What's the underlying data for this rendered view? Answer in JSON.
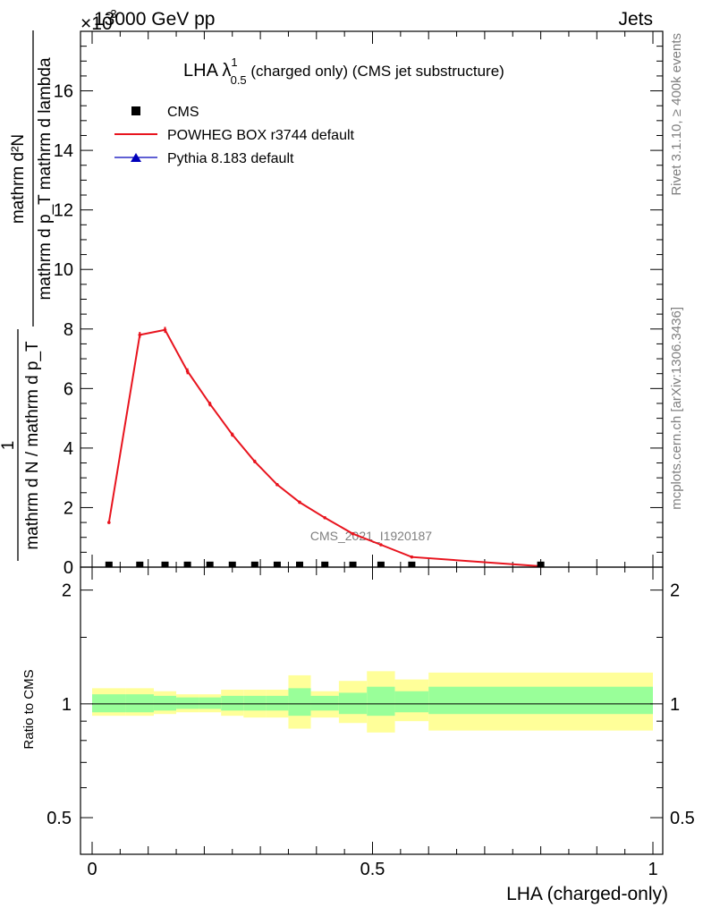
{
  "header": {
    "left": "13000 GeV pp",
    "right": "Jets",
    "exponent_prefix": "×10",
    "exponent_power": "-3"
  },
  "side_labels": {
    "rivet": "Rivet 3.1.10, ≥ 400k events",
    "mcplots": "mcplots.cern.ch [arXiv:1306.3436]"
  },
  "watermark": "CMS_2021_I1920187",
  "colors": {
    "powheg": "#e8141e",
    "pythia": "#0000bb",
    "cms": "#000000",
    "band_inner": "#99ff99",
    "band_outer": "#ffff99"
  },
  "chart_data": [
    {
      "type": "line",
      "title": "LHA λ",
      "title_sup": "1",
      "title_sub": "0.5",
      "title_suffix": " (charged only) (CMS jet substructure)",
      "ylabel": {
        "top": "mathrm d²N",
        "bottom": "mathrm d p_T mathrm d lambda",
        "prefactor_top": "1",
        "prefactor_bottom": "mathrm d N / mathrm d p_T"
      },
      "xlim": [
        0,
        1
      ],
      "ylim": [
        0,
        18
      ],
      "yticks": [
        0,
        2,
        4,
        6,
        8,
        10,
        12,
        14,
        16
      ],
      "ytick_labels": [
        "0",
        "2",
        "4",
        "6",
        "8",
        "10",
        "12",
        "14",
        "16"
      ],
      "legend": [
        {
          "label": "CMS",
          "marker": "square"
        },
        {
          "label": "POWHEG BOX r3744 default",
          "marker": "line"
        },
        {
          "label": "Pythia 8.183 default",
          "marker": "triangle"
        }
      ],
      "series": [
        {
          "name": "CMS",
          "x": [
            0.03,
            0.085,
            0.13,
            0.17,
            0.21,
            0.25,
            0.29,
            0.33,
            0.37,
            0.415,
            0.465,
            0.515,
            0.57,
            0.8
          ],
          "values": [
            0.005,
            0.005,
            0.005,
            0.005,
            0.005,
            0.005,
            0.005,
            0.005,
            0.005,
            0.005,
            0.005,
            0.005,
            0.005,
            0.005
          ]
        },
        {
          "name": "POWHEG BOX r3744 default",
          "x": [
            0.03,
            0.085,
            0.13,
            0.17,
            0.21,
            0.25,
            0.29,
            0.33,
            0.37,
            0.415,
            0.465,
            0.515,
            0.57,
            0.8
          ],
          "values": [
            1.5,
            7.8,
            7.97,
            6.58,
            5.48,
            4.45,
            3.55,
            2.77,
            2.18,
            1.66,
            1.12,
            0.75,
            0.34,
            0.03
          ],
          "errors": [
            0.04,
            0.1,
            0.1,
            0.1,
            0.08,
            0.07,
            0.06,
            0.05,
            0.05,
            0.04,
            0.03,
            0.03,
            0.02,
            0.01
          ]
        }
      ]
    },
    {
      "type": "area",
      "ylabel": "Ratio to CMS",
      "xlabel": "LHA (charged-only)",
      "xlim": [
        0,
        1
      ],
      "ylim": [
        0.4,
        2.3
      ],
      "yscale": "log",
      "yticks": [
        0.5,
        1,
        2
      ],
      "ytick_labels": [
        "0.5",
        "1",
        "2"
      ],
      "xticks": [
        0,
        0.5,
        1
      ],
      "xtick_labels": [
        "0",
        "0.5",
        "1"
      ],
      "bin_edges": [
        0,
        0.06,
        0.11,
        0.15,
        0.19,
        0.23,
        0.27,
        0.31,
        0.35,
        0.39,
        0.44,
        0.49,
        0.54,
        0.6,
        1.0
      ],
      "inner_band": [
        [
          0.95,
          1.06
        ],
        [
          0.95,
          1.06
        ],
        [
          0.96,
          1.05
        ],
        [
          0.97,
          1.04
        ],
        [
          0.97,
          1.04
        ],
        [
          0.96,
          1.05
        ],
        [
          0.96,
          1.05
        ],
        [
          0.96,
          1.05
        ],
        [
          0.93,
          1.1
        ],
        [
          0.96,
          1.05
        ],
        [
          0.94,
          1.07
        ],
        [
          0.93,
          1.11
        ],
        [
          0.95,
          1.08
        ],
        [
          0.94,
          1.11
        ]
      ],
      "outer_band": [
        [
          0.93,
          1.1
        ],
        [
          0.93,
          1.1
        ],
        [
          0.94,
          1.08
        ],
        [
          0.95,
          1.06
        ],
        [
          0.95,
          1.06
        ],
        [
          0.93,
          1.09
        ],
        [
          0.92,
          1.09
        ],
        [
          0.92,
          1.09
        ],
        [
          0.86,
          1.19
        ],
        [
          0.92,
          1.08
        ],
        [
          0.89,
          1.15
        ],
        [
          0.84,
          1.22
        ],
        [
          0.9,
          1.16
        ],
        [
          0.85,
          1.21
        ]
      ],
      "reference_line": 1
    }
  ]
}
